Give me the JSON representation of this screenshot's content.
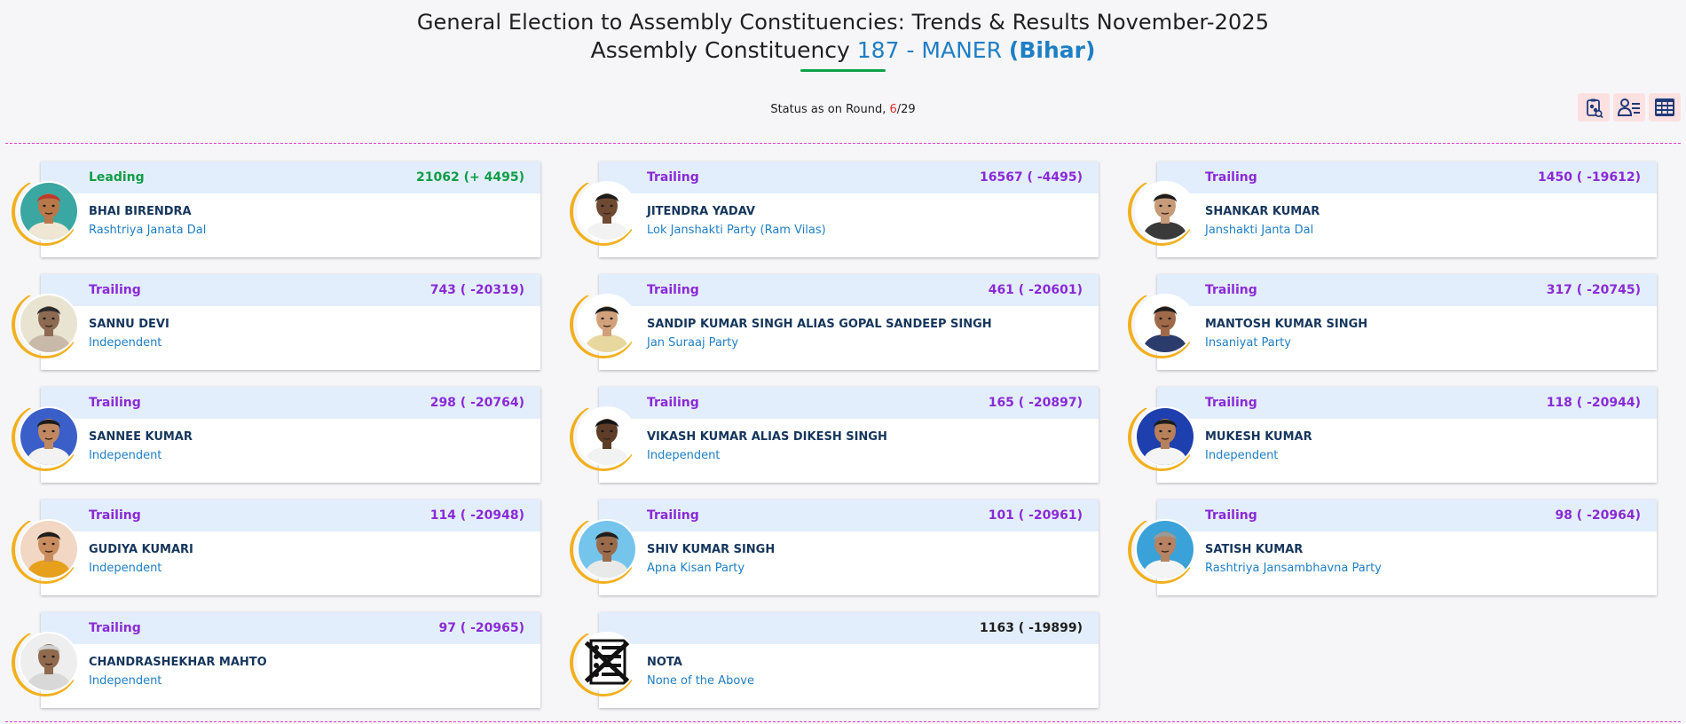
{
  "header": {
    "title_line1": "General Election to Assembly Constituencies: Trends & Results November-2025",
    "title_line2_prefix": "Assembly Constituency ",
    "constituency": "187 - MANER",
    "state": "(Bihar)"
  },
  "status": {
    "prefix": "Status as on Round, ",
    "round_current": "6",
    "round_total": "/29"
  },
  "tools": [
    {
      "name": "party-wise-icon"
    },
    {
      "name": "candidate-wise-icon"
    },
    {
      "name": "table-view-icon"
    }
  ],
  "candidates": [
    {
      "status": "Leading",
      "status_class": "leading",
      "votes": "21062 (+ 4495)",
      "name": "BHAI BIRENDRA",
      "party": "Rashtriya Janata Dal",
      "bg": "#3aa7a3",
      "skin": "#b8784a",
      "shirt": "#f0e6d4",
      "hair": "#c0392b"
    },
    {
      "status": "Trailing",
      "status_class": "trailing",
      "votes": "16567 ( -4495)",
      "name": "JITENDRA YADAV",
      "party": "Lok Janshakti Party (Ram Vilas)",
      "bg": "#ffffff",
      "skin": "#6f4a33",
      "shirt": "#f2f2f2",
      "hair": "#1c1c1c"
    },
    {
      "status": "Trailing",
      "status_class": "trailing",
      "votes": "1450 ( -19612)",
      "name": "SHANKAR KUMAR",
      "party": "Janshakti Janta Dal",
      "bg": "#ffffff",
      "skin": "#c79a78",
      "shirt": "#3a3a3a",
      "hair": "#1c1c1c"
    },
    {
      "status": "Trailing",
      "status_class": "trailing",
      "votes": "743 ( -20319)",
      "name": "SANNU DEVI",
      "party": "Independent",
      "bg": "#e9e4d2",
      "skin": "#8d6b52",
      "shirt": "#c9b9a8",
      "hair": "#2a2a2a"
    },
    {
      "status": "Trailing",
      "status_class": "trailing",
      "votes": "461 ( -20601)",
      "name": "SANDIP KUMAR SINGH ALIAS GOPAL SANDEEP SINGH",
      "party": "Jan Suraaj Party",
      "bg": "#ffffff",
      "skin": "#d2a17c",
      "shirt": "#e8d79e",
      "hair": "#1c1c1c"
    },
    {
      "status": "Trailing",
      "status_class": "trailing",
      "votes": "317 ( -20745)",
      "name": "MANTOSH KUMAR SINGH",
      "party": "Insaniyat Party",
      "bg": "#ffffff",
      "skin": "#a06a4a",
      "shirt": "#2b3b6b",
      "hair": "#1c1c1c"
    },
    {
      "status": "Trailing",
      "status_class": "trailing",
      "votes": "298 ( -20764)",
      "name": "SANNEE KUMAR",
      "party": "Independent",
      "bg": "#3b5fc8",
      "skin": "#c08860",
      "shirt": "#f2f2f2",
      "hair": "#1c1c1c"
    },
    {
      "status": "Trailing",
      "status_class": "trailing",
      "votes": "165 ( -20897)",
      "name": "VIKASH KUMAR ALIAS DIKESH SINGH",
      "party": "Independent",
      "bg": "#ffffff",
      "skin": "#5e3d28",
      "shirt": "#f2f2f2",
      "hair": "#141414"
    },
    {
      "status": "Trailing",
      "status_class": "trailing",
      "votes": "118 ( -20944)",
      "name": "MUKESH KUMAR",
      "party": "Independent",
      "bg": "#1e3fae",
      "skin": "#b7805a",
      "shirt": "#f4f4f4",
      "hair": "#1c1c1c"
    },
    {
      "status": "Trailing",
      "status_class": "trailing",
      "votes": "114 ( -20948)",
      "name": "GUDIYA KUMARI",
      "party": "Independent",
      "bg": "#f1d7c4",
      "skin": "#c98c5e",
      "shirt": "#e6a01c",
      "hair": "#1c1c1c"
    },
    {
      "status": "Trailing",
      "status_class": "trailing",
      "votes": "101 ( -20961)",
      "name": "SHIV KUMAR SINGH",
      "party": "Apna Kisan Party",
      "bg": "#74c4ec",
      "skin": "#9a6b4b",
      "shirt": "#e9e9e9",
      "hair": "#1c1c1c"
    },
    {
      "status": "Trailing",
      "status_class": "trailing",
      "votes": "98 ( -20964)",
      "name": "SATISH KUMAR",
      "party": "Rashtriya Jansambhavna Party",
      "bg": "#3aa2d8",
      "skin": "#b68262",
      "shirt": "#f4f4f4",
      "hair": "#9a9a9a"
    },
    {
      "status": "Trailing",
      "status_class": "trailing",
      "votes": "97 ( -20965)",
      "name": "CHANDRASHEKHAR MAHTO",
      "party": "Independent",
      "bg": "#eeeeee",
      "skin": "#8f6a4e",
      "shirt": "#d8d8d8",
      "hair": "#cfcfcf"
    },
    {
      "status": "",
      "status_class": "neutral",
      "votes": "1163 ( -19899)",
      "name": "NOTA",
      "party": "None of the Above",
      "nota": true
    }
  ]
}
